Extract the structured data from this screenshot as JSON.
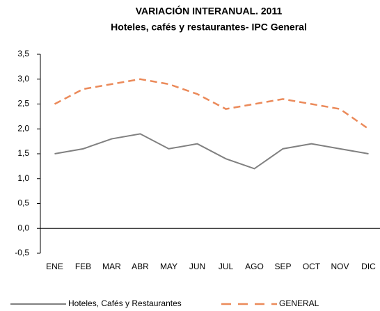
{
  "chart_data": {
    "type": "line",
    "title": "VARIACIÓN INTERANUAL. 2011",
    "subtitle": "Hoteles, cafés y restaurantes- IPC General",
    "categories": [
      "ENE",
      "FEB",
      "MAR",
      "ABR",
      "MAY",
      "JUN",
      "JUL",
      "AGO",
      "SEP",
      "OCT",
      "NOV",
      "DIC"
    ],
    "series": [
      {
        "name": "Hoteles, Cafés y Restaurantes",
        "color": "#808080",
        "dashed": false,
        "values": [
          1.5,
          1.6,
          1.8,
          1.9,
          1.6,
          1.7,
          1.4,
          1.2,
          1.6,
          1.7,
          1.6,
          1.5
        ]
      },
      {
        "name": "GENERAL",
        "color": "#eb8a5a",
        "dashed": true,
        "values": [
          2.5,
          2.8,
          2.9,
          3.0,
          2.9,
          2.7,
          2.4,
          2.5,
          2.6,
          2.5,
          2.4,
          2.0
        ]
      }
    ],
    "ylim": [
      -0.5,
      3.5
    ],
    "yticks": [
      {
        "value": -0.5,
        "label": "-0,5"
      },
      {
        "value": 0,
        "label": "0,0"
      },
      {
        "value": 0.5,
        "label": "0,5"
      },
      {
        "value": 1,
        "label": "1,0"
      },
      {
        "value": 1.5,
        "label": "1,5"
      },
      {
        "value": 2,
        "label": "2,0"
      },
      {
        "value": 2.5,
        "label": "2,5"
      },
      {
        "value": 3,
        "label": "3,0"
      },
      {
        "value": 3.5,
        "label": "3,5"
      }
    ],
    "legend": "bottom"
  }
}
